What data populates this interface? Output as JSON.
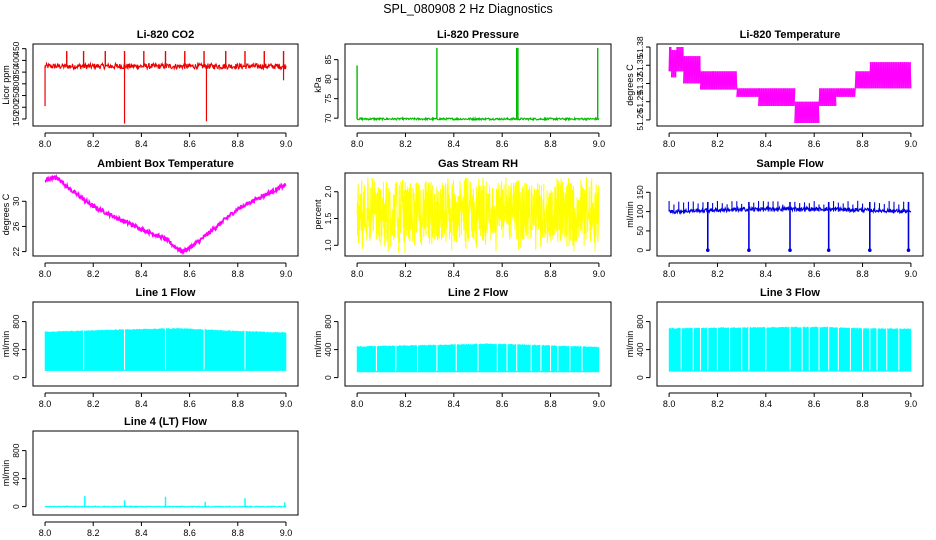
{
  "page_title": "SPL_080908  2 Hz Diagnostics",
  "colors": {
    "red": "#ee0000",
    "green": "#00bb00",
    "magenta": "#ff00ff",
    "yellow": "#ffff00",
    "blue": "#0000dd",
    "cyan": "#00ffff"
  },
  "chart_data": [
    {
      "type": "line",
      "title": "Li-820 CO2",
      "ylabel": "Licor ppm",
      "xlim": [
        7.95,
        9.05
      ],
      "ylim": [
        120,
        470
      ],
      "x_ticks": [
        "8.0",
        "8.2",
        "8.4",
        "8.6",
        "8.8",
        "9.0"
      ],
      "y_ticks": [
        "150",
        "200",
        "250",
        "300",
        "350",
        "400",
        "450"
      ],
      "color": "red",
      "baseline": 375,
      "noise": 12,
      "x_range": [
        8.0,
        9.0
      ],
      "spikes_up": [
        {
          "x": 8.09,
          "y": 440
        },
        {
          "x": 8.16,
          "y": 440
        },
        {
          "x": 8.25,
          "y": 440
        },
        {
          "x": 8.33,
          "y": 440
        },
        {
          "x": 8.41,
          "y": 440
        },
        {
          "x": 8.5,
          "y": 440
        },
        {
          "x": 8.58,
          "y": 440
        },
        {
          "x": 8.66,
          "y": 440
        },
        {
          "x": 8.75,
          "y": 440
        },
        {
          "x": 8.83,
          "y": 440
        },
        {
          "x": 8.91,
          "y": 440
        },
        {
          "x": 8.99,
          "y": 440
        }
      ],
      "spikes_down": [
        {
          "x": 8.0,
          "y": 205
        },
        {
          "x": 8.33,
          "y": 130
        },
        {
          "x": 8.67,
          "y": 140
        },
        {
          "x": 8.99,
          "y": 315
        }
      ]
    },
    {
      "type": "line",
      "title": "Li-820 Pressure",
      "ylabel": "kPa",
      "xlim": [
        7.95,
        9.05
      ],
      "ylim": [
        68,
        89
      ],
      "x_ticks": [
        "8.0",
        "8.2",
        "8.4",
        "8.6",
        "8.8",
        "9.0"
      ],
      "y_ticks": [
        "70",
        "75",
        "80",
        "85"
      ],
      "color": "green",
      "baseline": 69.8,
      "noise": 0.25,
      "x_range": [
        8.0,
        9.0
      ],
      "spikes_up": [
        {
          "x": 8.0,
          "y": 83.5
        },
        {
          "x": 8.33,
          "y": 88
        },
        {
          "x": 8.66,
          "y": 88
        },
        {
          "x": 8.665,
          "y": 88
        },
        {
          "x": 8.995,
          "y": 88
        }
      ],
      "spikes_down": []
    },
    {
      "type": "line",
      "title": "Li-820 Temperature",
      "ylabel": "degrees C",
      "xlim": [
        7.95,
        9.05
      ],
      "ylim": [
        51.25,
        51.385
      ],
      "x_ticks": [
        "8.0",
        "8.2",
        "8.4",
        "8.6",
        "8.8",
        "9.0"
      ],
      "y_ticks": [
        "51.26",
        "51.29",
        "51.32",
        "51.35",
        "51.38"
      ],
      "color": "magenta",
      "segments": [
        {
          "x0": 8.0,
          "x1": 8.01,
          "lo": 51.34,
          "hi": 51.38
        },
        {
          "x0": 8.01,
          "x1": 8.03,
          "lo": 51.33,
          "hi": 51.375
        },
        {
          "x0": 8.03,
          "x1": 8.06,
          "lo": 51.34,
          "hi": 51.38
        },
        {
          "x0": 8.06,
          "x1": 8.13,
          "lo": 51.32,
          "hi": 51.365
        },
        {
          "x0": 8.13,
          "x1": 8.18,
          "lo": 51.31,
          "hi": 51.34
        },
        {
          "x0": 8.18,
          "x1": 8.28,
          "lo": 51.31,
          "hi": 51.34
        },
        {
          "x0": 8.28,
          "x1": 8.37,
          "lo": 51.298,
          "hi": 51.312
        },
        {
          "x0": 8.37,
          "x1": 8.52,
          "lo": 51.283,
          "hi": 51.312
        },
        {
          "x0": 8.52,
          "x1": 8.62,
          "lo": 51.255,
          "hi": 51.29
        },
        {
          "x0": 8.62,
          "x1": 8.69,
          "lo": 51.283,
          "hi": 51.312
        },
        {
          "x0": 8.69,
          "x1": 8.77,
          "lo": 51.298,
          "hi": 51.312
        },
        {
          "x0": 8.77,
          "x1": 8.83,
          "lo": 51.312,
          "hi": 51.34
        },
        {
          "x0": 8.83,
          "x1": 9.0,
          "lo": 51.312,
          "hi": 51.355
        }
      ]
    },
    {
      "type": "line",
      "title": "Ambient Box Temperature",
      "ylabel": "degrees C",
      "xlim": [
        7.95,
        9.05
      ],
      "ylim": [
        21.3,
        34.5
      ],
      "x_ticks": [
        "8.0",
        "8.2",
        "8.4",
        "8.6",
        "8.8",
        "9.0"
      ],
      "y_ticks": [
        "22",
        "26",
        "30"
      ],
      "color": "magenta",
      "points": [
        {
          "x": 8.0,
          "y": 33.2
        },
        {
          "x": 8.03,
          "y": 33.8
        },
        {
          "x": 8.06,
          "y": 33.5
        },
        {
          "x": 8.1,
          "y": 32.0
        },
        {
          "x": 8.2,
          "y": 29.2
        },
        {
          "x": 8.3,
          "y": 27.3
        },
        {
          "x": 8.4,
          "y": 25.6
        },
        {
          "x": 8.5,
          "y": 24.0
        },
        {
          "x": 8.54,
          "y": 22.8
        },
        {
          "x": 8.57,
          "y": 22.0
        },
        {
          "x": 8.6,
          "y": 22.6
        },
        {
          "x": 8.65,
          "y": 24.0
        },
        {
          "x": 8.7,
          "y": 25.6
        },
        {
          "x": 8.75,
          "y": 27.2
        },
        {
          "x": 8.8,
          "y": 28.8
        },
        {
          "x": 8.9,
          "y": 30.8
        },
        {
          "x": 9.0,
          "y": 32.6
        }
      ],
      "noise": 0.35
    },
    {
      "type": "line",
      "title": "Gas Stream RH",
      "ylabel": "percent",
      "xlim": [
        7.95,
        9.05
      ],
      "ylim": [
        0.8,
        2.35
      ],
      "x_ticks": [
        "8.0",
        "8.2",
        "8.4",
        "8.6",
        "8.8",
        "9.0"
      ],
      "y_ticks": [
        "1.0",
        "1.5",
        "2.0"
      ],
      "color": "yellow",
      "lo": 1.05,
      "hi": 2.2,
      "dip_min": 0.85,
      "peak_max": 2.3
    },
    {
      "type": "line",
      "title": "Sample Flow",
      "ylabel": "ml/min",
      "xlim": [
        7.95,
        9.05
      ],
      "ylim": [
        -15,
        200
      ],
      "x_ticks": [
        "8.0",
        "8.2",
        "8.4",
        "8.6",
        "8.8",
        "9.0"
      ],
      "y_ticks": [
        "0",
        "50",
        "100",
        "150"
      ],
      "color": "blue",
      "baseline": 100,
      "noise": 5,
      "drift": 7,
      "dips": [
        8.16,
        8.33,
        8.5,
        8.66,
        8.83,
        8.99
      ],
      "bumps": [
        8.0,
        8.02,
        8.04,
        8.06,
        8.08,
        8.1,
        8.12,
        8.14,
        8.18,
        8.2,
        8.22,
        8.24,
        8.26,
        8.28,
        8.3,
        8.35,
        8.37,
        8.39,
        8.41,
        8.43,
        8.45,
        8.47,
        8.52,
        8.54,
        8.56,
        8.58,
        8.6,
        8.62,
        8.64,
        8.68,
        8.7,
        8.72,
        8.74,
        8.76,
        8.78,
        8.8,
        8.85,
        8.87,
        8.89,
        8.91,
        8.93,
        8.95,
        8.97
      ]
    },
    {
      "type": "area",
      "title": "Line 1 Flow",
      "ylabel": "ml/min",
      "xlim": [
        7.95,
        9.05
      ],
      "ylim": [
        -120,
        1080
      ],
      "x_ticks": [
        "8.0",
        "8.2",
        "8.4",
        "8.6",
        "8.8",
        "9.0"
      ],
      "y_ticks": [
        "0",
        "400",
        "800"
      ],
      "color": "cyan",
      "lo": 100,
      "top_points": [
        {
          "x": 8.0,
          "y": 650
        },
        {
          "x": 8.3,
          "y": 680
        },
        {
          "x": 8.55,
          "y": 700
        },
        {
          "x": 8.8,
          "y": 660
        },
        {
          "x": 9.0,
          "y": 640
        }
      ],
      "gaps": [
        8.16,
        8.33,
        8.5,
        8.66,
        8.83
      ]
    },
    {
      "type": "area",
      "title": "Line 2 Flow",
      "ylabel": "ml/min",
      "xlim": [
        7.95,
        9.05
      ],
      "ylim": [
        -120,
        1080
      ],
      "x_ticks": [
        "8.0",
        "8.2",
        "8.4",
        "8.6",
        "8.8",
        "9.0"
      ],
      "y_ticks": [
        "0",
        "400",
        "800"
      ],
      "color": "cyan",
      "lo": 80,
      "top_points": [
        {
          "x": 8.0,
          "y": 440
        },
        {
          "x": 8.3,
          "y": 460
        },
        {
          "x": 8.55,
          "y": 480
        },
        {
          "x": 8.8,
          "y": 455
        },
        {
          "x": 9.0,
          "y": 430
        }
      ],
      "gaps": [
        8.08,
        8.16,
        8.25,
        8.33,
        8.41,
        8.5,
        8.58,
        8.62,
        8.66,
        8.72,
        8.76,
        8.8,
        8.83,
        8.88,
        8.93
      ]
    },
    {
      "type": "area",
      "title": "Line 3 Flow",
      "ylabel": "ml/min",
      "xlim": [
        7.95,
        9.05
      ],
      "ylim": [
        -120,
        1080
      ],
      "x_ticks": [
        "8.0",
        "8.2",
        "8.4",
        "8.6",
        "8.8",
        "9.0"
      ],
      "y_ticks": [
        "0",
        "400",
        "800"
      ],
      "color": "cyan",
      "lo": 90,
      "top_points": [
        {
          "x": 8.0,
          "y": 700
        },
        {
          "x": 8.3,
          "y": 710
        },
        {
          "x": 8.6,
          "y": 720
        },
        {
          "x": 8.8,
          "y": 700
        },
        {
          "x": 9.0,
          "y": 690
        }
      ],
      "gaps": [
        8.05,
        8.1,
        8.13,
        8.16,
        8.2,
        8.25,
        8.3,
        8.33,
        8.4,
        8.5,
        8.55,
        8.58,
        8.62,
        8.66,
        8.7,
        8.75,
        8.8,
        8.83,
        8.86,
        8.9,
        8.95
      ]
    },
    {
      "type": "line",
      "title": "Line 4 (LT) Flow",
      "ylabel": "ml/min",
      "xlim": [
        7.95,
        9.05
      ],
      "ylim": [
        -120,
        1080
      ],
      "x_ticks": [
        "8.0",
        "8.2",
        "8.4",
        "8.6",
        "8.8",
        "9.0"
      ],
      "y_ticks": [
        "0",
        "400",
        "800"
      ],
      "color": "cyan",
      "baseline": 0,
      "noise": 6,
      "spikes_up": [
        {
          "x": 8.165,
          "y": 150
        },
        {
          "x": 8.33,
          "y": 90
        },
        {
          "x": 8.5,
          "y": 140
        },
        {
          "x": 8.665,
          "y": 70
        },
        {
          "x": 8.83,
          "y": 120
        },
        {
          "x": 8.995,
          "y": 60
        }
      ]
    }
  ]
}
